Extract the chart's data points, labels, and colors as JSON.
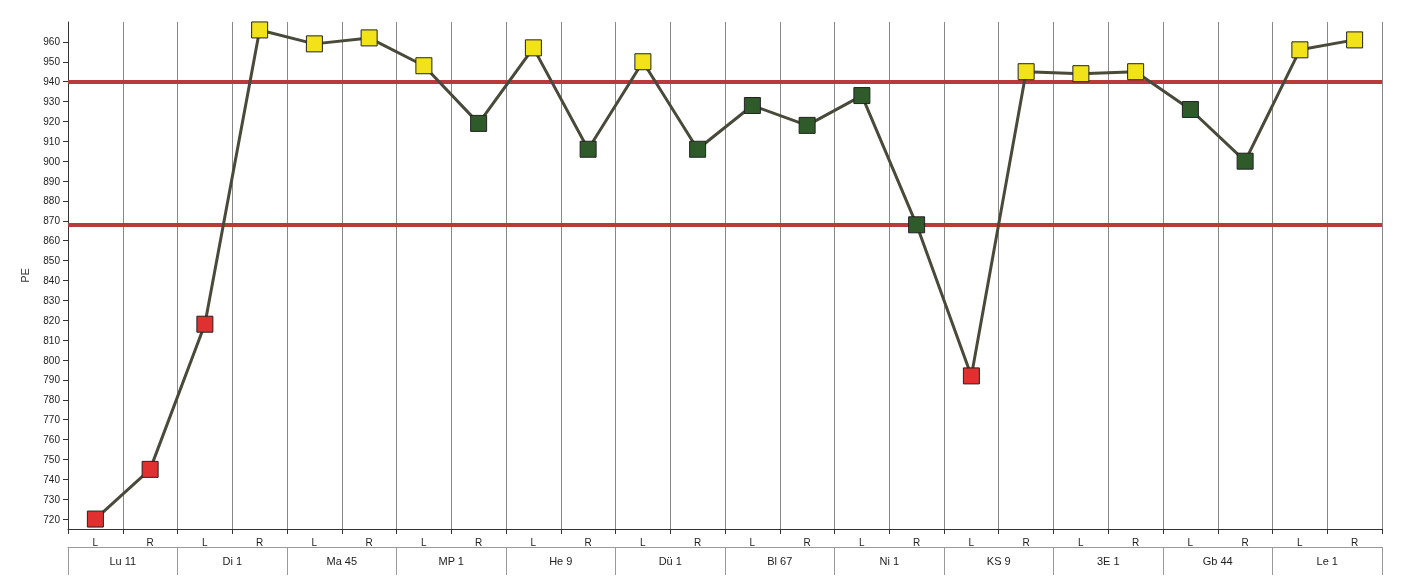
{
  "chart_data": {
    "type": "line",
    "ylabel": "PE",
    "categories": [
      "L",
      "R",
      "L",
      "R",
      "L",
      "R",
      "L",
      "R",
      "L",
      "R",
      "L",
      "R",
      "L",
      "R",
      "L",
      "R",
      "L",
      "R",
      "L",
      "R",
      "L",
      "R",
      "L",
      "R"
    ],
    "annotations": [
      "Lu 11",
      "Di 1",
      "Ma 45",
      "MP 1",
      "He 9",
      "Dü 1",
      "Bl 67",
      "Ni 1",
      "KS 9",
      "3E 1",
      "Gb 44",
      "Le 1"
    ],
    "series": [
      {
        "color": "#4a4a3a",
        "values": [
          720,
          745,
          818,
          966,
          959,
          962,
          948,
          919,
          957,
          906,
          950,
          906,
          928,
          918,
          933,
          868,
          792,
          945,
          944,
          945,
          926,
          900,
          956,
          961
        ],
        "colors": [
          "#e03030",
          "#e03030",
          "#e03030",
          "#f2e21a",
          "#f2e21a",
          "#f2e21a",
          "#f2e21a",
          "#2f5a2a",
          "#f2e21a",
          "#2f5a2a",
          "#f2e21a",
          "#2f5a2a",
          "#2f5a2a",
          "#2f5a2a",
          "#2f5a2a",
          "#2f5a2a",
          "#e03030",
          "#f2e21a",
          "#f2e21a",
          "#f2e21a",
          "#2f5a2a",
          "#2f5a2a",
          "#f2e21a",
          "#f2e21a"
        ]
      }
    ],
    "ylim": [
      715,
      970
    ],
    "yticks": [
      720,
      730,
      740,
      750,
      760,
      770,
      780,
      790,
      800,
      810,
      820,
      830,
      840,
      850,
      860,
      870,
      880,
      890,
      900,
      910,
      920,
      930,
      940,
      950,
      960
    ],
    "ref_lines": [
      {
        "axis": "y",
        "value": 940,
        "color": "#b83a3a"
      },
      {
        "axis": "y",
        "value": 868,
        "color": "#b83a3a"
      }
    ],
    "grid": "x",
    "marker": "square",
    "line_style": "solid"
  }
}
